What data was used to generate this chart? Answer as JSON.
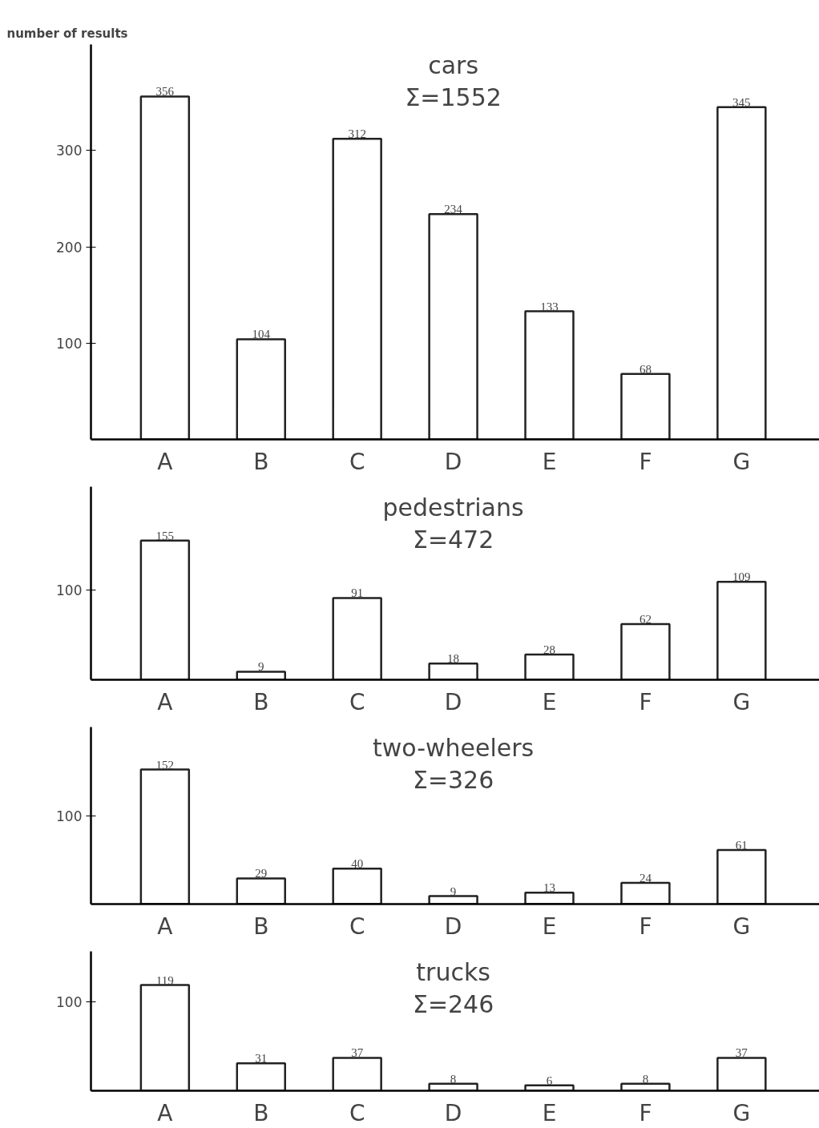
{
  "chart_data": [
    {
      "type": "bar",
      "ylabel": "number of results",
      "title": "cars",
      "subtitle": "Σ=1552",
      "categories": [
        "A",
        "B",
        "C",
        "D",
        "E",
        "F",
        "G"
      ],
      "values": [
        356,
        104,
        312,
        234,
        133,
        68,
        345
      ],
      "color": "#ffffff",
      "ylim": [
        0,
        410
      ],
      "yticks": [
        100,
        200,
        300
      ],
      "data_labels": true
    },
    {
      "type": "bar",
      "title": "pedestrians",
      "subtitle": "Σ=472",
      "categories": [
        "A",
        "B",
        "C",
        "D",
        "E",
        "F",
        "G"
      ],
      "values": [
        155,
        9,
        91,
        18,
        28,
        62,
        109
      ],
      "color": "#ffffff",
      "ylim": [
        0,
        215
      ],
      "yticks": [
        100
      ],
      "data_labels": true
    },
    {
      "type": "bar",
      "title": "two-wheelers",
      "subtitle": "Σ=326",
      "categories": [
        "A",
        "B",
        "C",
        "D",
        "E",
        "F",
        "G"
      ],
      "values": [
        152,
        29,
        40,
        9,
        13,
        24,
        61
      ],
      "color": "#ffffff",
      "ylim": [
        0,
        200
      ],
      "yticks": [
        100
      ],
      "data_labels": true
    },
    {
      "type": "bar",
      "title": "trucks",
      "subtitle": "Σ=246",
      "categories": [
        "A",
        "B",
        "C",
        "D",
        "E",
        "F",
        "G"
      ],
      "values": [
        119,
        31,
        37,
        8,
        6,
        8,
        37
      ],
      "color": "#ffffff",
      "ylim": [
        0,
        157
      ],
      "yticks": [
        100
      ],
      "data_labels": true
    }
  ]
}
